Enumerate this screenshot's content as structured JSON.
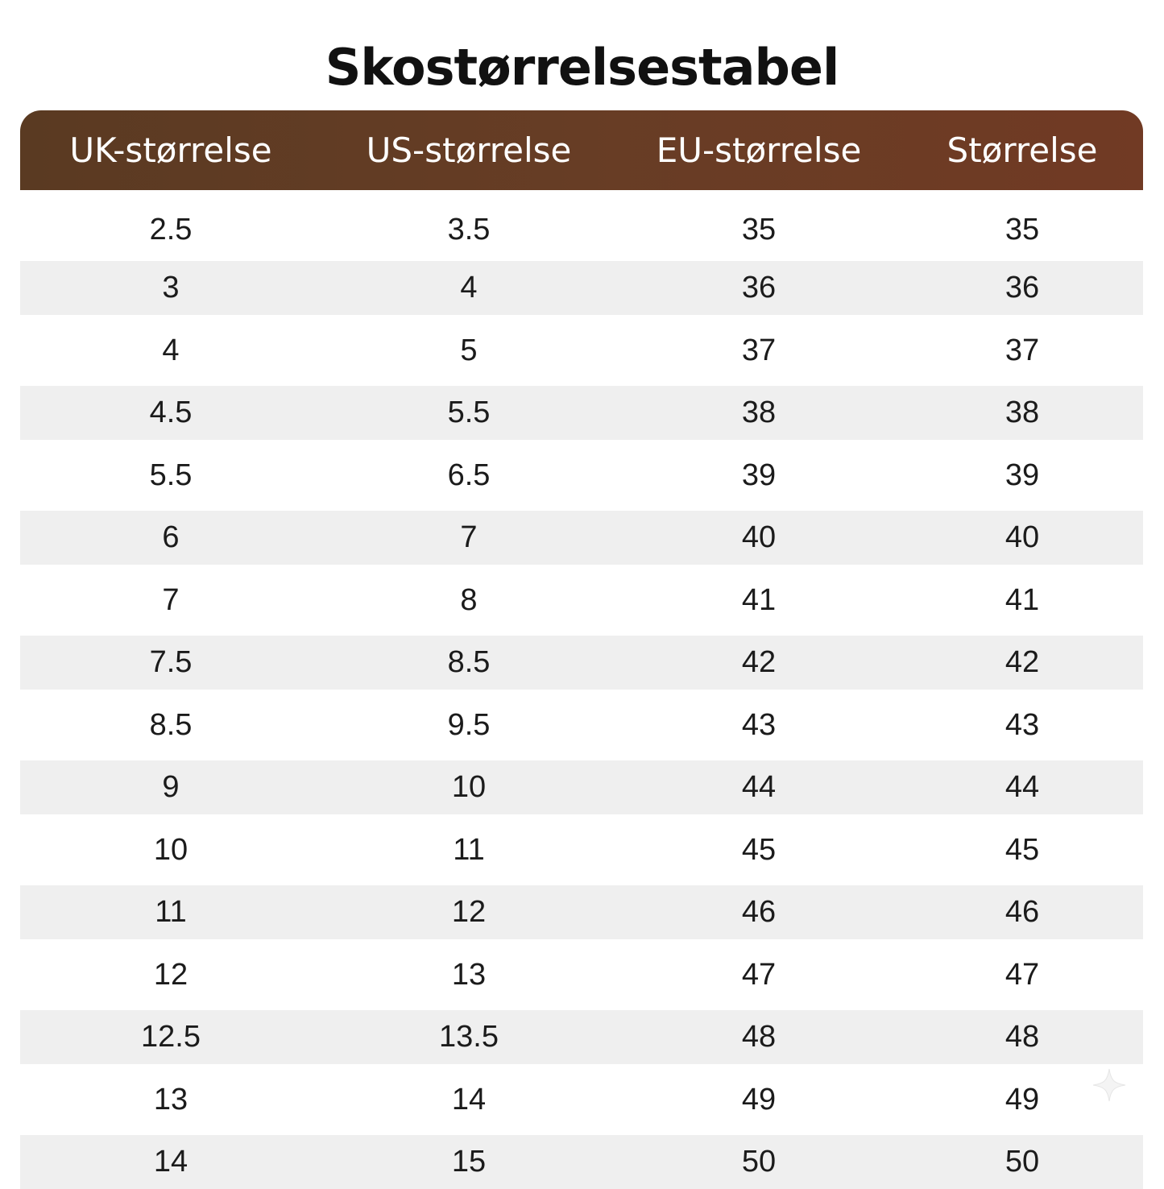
{
  "title": "Skostørrelsestabel",
  "colors": {
    "header_start": "#5a3a22",
    "header_end": "#713a24",
    "stripe": "#efefef",
    "header_text": "#ffffff"
  },
  "headers": [
    "UK-størrelse",
    "US-størrelse",
    "EU-størrelse",
    "Størrelse"
  ],
  "rows": [
    [
      "2.5",
      "3.5",
      "35",
      "35"
    ],
    [
      "3",
      "4",
      "36",
      "36"
    ],
    [
      "4",
      "5",
      "37",
      "37"
    ],
    [
      "4.5",
      "5.5",
      "38",
      "38"
    ],
    [
      "5.5",
      "6.5",
      "39",
      "39"
    ],
    [
      "6",
      "7",
      "40",
      "40"
    ],
    [
      "7",
      "8",
      "41",
      "41"
    ],
    [
      "7.5",
      "8.5",
      "42",
      "42"
    ],
    [
      "8.5",
      "9.5",
      "43",
      "43"
    ],
    [
      "9",
      "10",
      "44",
      "44"
    ],
    [
      "10",
      "11",
      "45",
      "45"
    ],
    [
      "11",
      "12",
      "46",
      "46"
    ],
    [
      "12",
      "13",
      "47",
      "47"
    ],
    [
      "12.5",
      "13.5",
      "48",
      "48"
    ],
    [
      "13",
      "14",
      "49",
      "49"
    ],
    [
      "14",
      "15",
      "50",
      "50"
    ]
  ],
  "icons": {
    "watermark": "sparkle-icon"
  }
}
